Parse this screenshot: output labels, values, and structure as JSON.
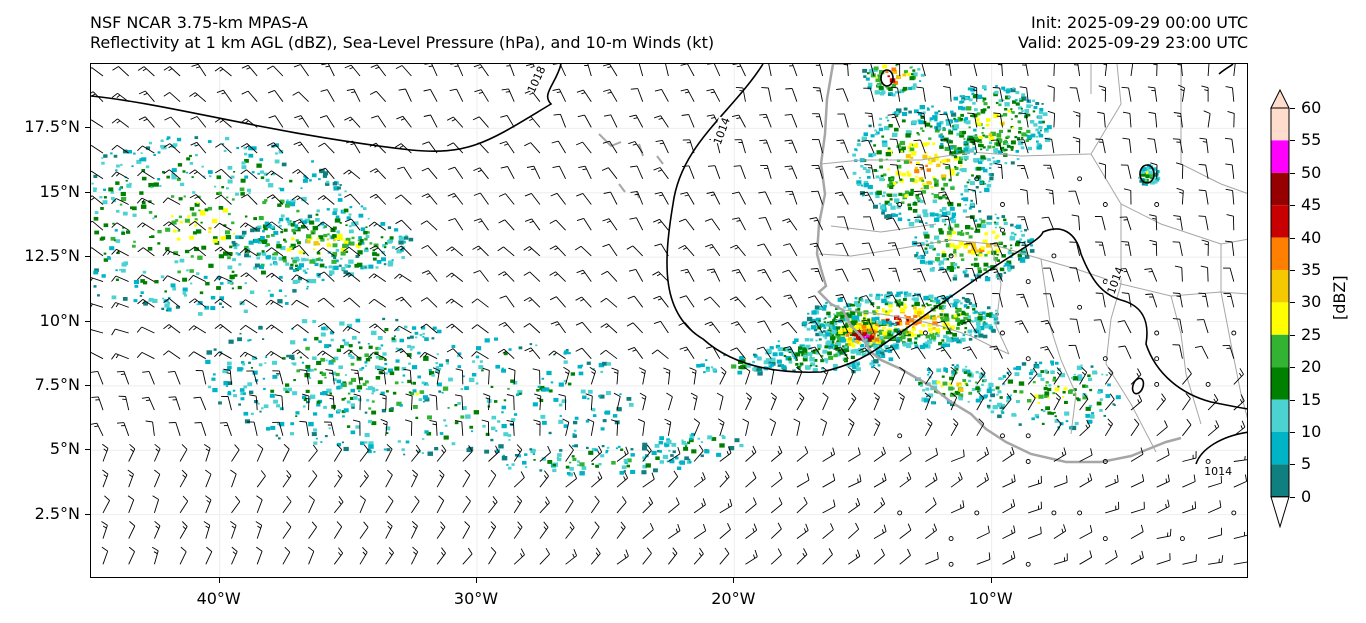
{
  "title": {
    "line1": "NSF NCAR 3.75-km MPAS-A",
    "line2": "Reflectivity at 1 km AGL (dBZ), Sea-Level Pressure (hPa), and 10-m Winds (kt)",
    "init": "Init: 2025-09-29 00:00 UTC",
    "valid": "Valid: 2025-09-29 23:00 UTC"
  },
  "map": {
    "lon_range": [
      -45,
      0
    ],
    "lat_range": [
      0,
      20
    ],
    "lat_ticks": [
      {
        "value": 2.5,
        "label": "2.5°N"
      },
      {
        "value": 5,
        "label": "5°N"
      },
      {
        "value": 7.5,
        "label": "7.5°N"
      },
      {
        "value": 10,
        "label": "10°N"
      },
      {
        "value": 12.5,
        "label": "12.5°N"
      },
      {
        "value": 15,
        "label": "15°N"
      },
      {
        "value": 17.5,
        "label": "17.5°N"
      }
    ],
    "lon_ticks": [
      {
        "value": -40,
        "label": "40°W"
      },
      {
        "value": -30,
        "label": "30°W"
      },
      {
        "value": -20,
        "label": "20°W"
      },
      {
        "value": -10,
        "label": "10°W"
      }
    ],
    "isobar_labels": [
      {
        "text": "1018",
        "lon": -27.7,
        "lat": 19.4
      },
      {
        "text": "1014",
        "lon": -20.5,
        "lat": 17.4
      },
      {
        "text": "1014",
        "lon": -5.2,
        "lat": 11.6
      },
      {
        "text": "1014",
        "lon": -1.2,
        "lat": 4.2
      }
    ],
    "colors": {
      "isobar": "#000000",
      "coastline": "#a6a6a6",
      "barb": "#000000"
    }
  },
  "colorbar": {
    "label": "[dBZ]",
    "levels": [
      "0",
      "5",
      "10",
      "15",
      "20",
      "25",
      "30",
      "35",
      "40",
      "45",
      "50",
      "55",
      "60"
    ],
    "colors": [
      "#0f7f7f",
      "#00b4c8",
      "#4dd2d2",
      "#008000",
      "#32b432",
      "#ffff00",
      "#f5c800",
      "#ff8000",
      "#c80000",
      "#960000",
      "#ff00ff",
      "#ffdccc"
    ],
    "under_color": "#ffffff"
  }
}
